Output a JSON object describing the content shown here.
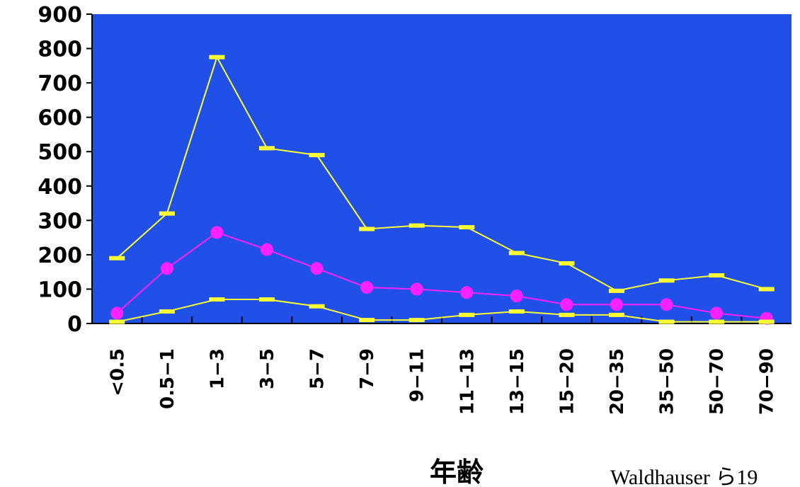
{
  "chart_data": {
    "type": "line",
    "categories": [
      "<0.5",
      "0.5−1",
      "1−3",
      "3−5",
      "5−7",
      "7−9",
      "9−11",
      "11−13",
      "13−15",
      "15−20",
      "20−35",
      "35−50",
      "50−70",
      "70−90"
    ],
    "series": [
      {
        "values": [
          190,
          320,
          775,
          510,
          490,
          275,
          285,
          280,
          205,
          175,
          95,
          125,
          140,
          100
        ],
        "color": "#ffff33",
        "marker": "dash"
      },
      {
        "values": [
          30,
          160,
          265,
          215,
          160,
          105,
          100,
          90,
          80,
          55,
          55,
          55,
          30,
          15
        ],
        "color": "#ff22ff",
        "marker": "circle"
      },
      {
        "values": [
          5,
          35,
          70,
          70,
          50,
          10,
          10,
          25,
          35,
          25,
          25,
          5,
          5,
          5
        ],
        "color": "#ffff33",
        "marker": "dash"
      }
    ],
    "ylim": [
      0,
      900
    ],
    "yticks": [
      "0",
      "100",
      "200",
      "300",
      "400",
      "500",
      "600",
      "700",
      "800",
      "900"
    ],
    "xlabel": "年齢",
    "ylabel": "",
    "title": "",
    "grid": false,
    "legend": "none",
    "plot_background": "#2050e8"
  },
  "annotations": {
    "credit": "Waldhauser ら19"
  }
}
